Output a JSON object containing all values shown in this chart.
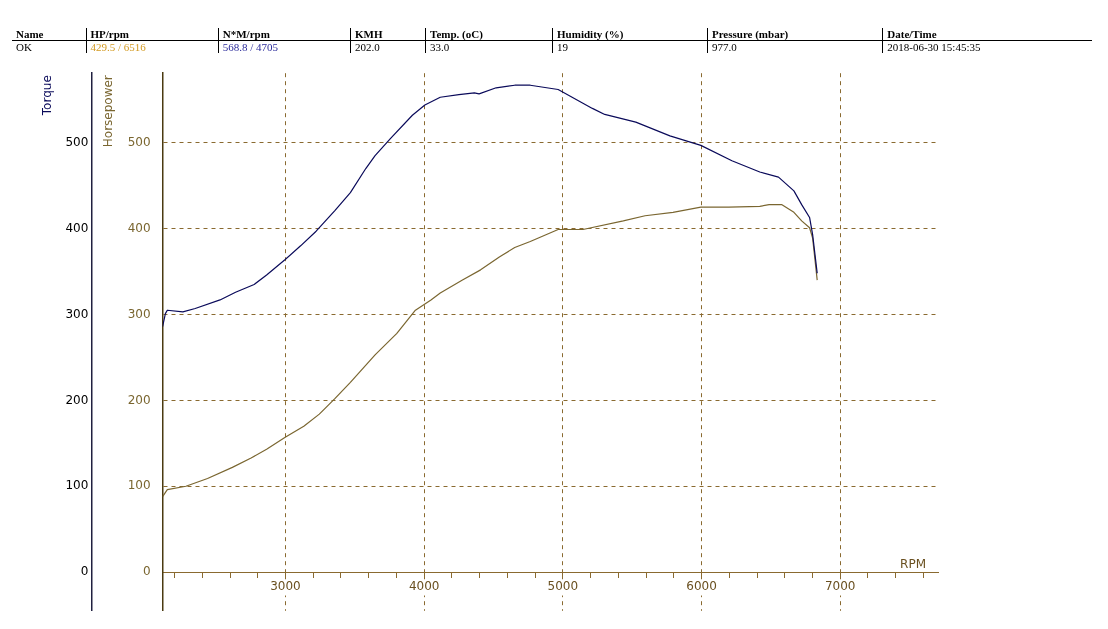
{
  "chart_data": {
    "type": "line",
    "xlabel": "RPM",
    "ylabel": "Torque",
    "y2label": "Horsepower",
    "annotations": [
      "Name",
      "HP/rpm",
      "N*M/rpm",
      "KMH",
      "Temp. (oC)",
      "Humidity (%)",
      "Pressure (mbar)",
      "Date/Time",
      "OK",
      "429.5 / 6516",
      "568.8 / 4705",
      "202.0",
      "33.0",
      "19",
      "977.0",
      "2018-06-30 15:45:35"
    ],
    "xlim": [
      2114,
      7705
    ],
    "xticks": [
      {
        "value": 2200,
        "label": null
      },
      {
        "value": 2400,
        "label": null
      },
      {
        "value": 2600,
        "label": null
      },
      {
        "value": 2800,
        "label": null
      },
      3000,
      {
        "value": 3200,
        "label": null
      },
      {
        "value": 3400,
        "label": null
      },
      {
        "value": 3600,
        "label": null
      },
      {
        "value": 3800,
        "label": null
      },
      4000,
      {
        "value": 4200,
        "label": null
      },
      {
        "value": 4400,
        "label": null
      },
      {
        "value": 4600,
        "label": null
      },
      {
        "value": 4800,
        "label": null
      },
      5000,
      {
        "value": 5200,
        "label": null
      },
      {
        "value": 5400,
        "label": null
      },
      {
        "value": 5600,
        "label": null
      },
      {
        "value": 5800,
        "label": null
      },
      6000,
      {
        "value": 6200,
        "label": null
      },
      {
        "value": 6400,
        "label": null
      },
      {
        "value": 6600,
        "label": null
      },
      {
        "value": 6800,
        "label": null
      },
      7000,
      {
        "value": 7200,
        "label": null
      },
      {
        "value": 7400,
        "label": null
      },
      {
        "value": 7600,
        "label": null
      }
    ],
    "ylim": [
      -45,
      581
    ],
    "yticks": [
      0,
      100,
      200,
      300,
      400,
      500
    ],
    "y2lim": [
      -45,
      581
    ],
    "y2ticks": [
      0,
      100,
      200,
      300,
      400,
      500
    ],
    "grid": true,
    "legend": false,
    "marker": "none",
    "line_style": "solid",
    "series": [
      {
        "color": "#0a0a5a",
        "x": [
          2114,
          2134,
          2148,
          2260,
          2349,
          2528,
          2640,
          2774,
          2864,
          2998,
          3109,
          3221,
          3356,
          3468,
          3579,
          3646,
          3758,
          3915,
          4005,
          4116,
          4250,
          4362,
          4396,
          4519,
          4653,
          4765,
          4966,
          5213,
          5302,
          5526,
          5772,
          5995,
          6219,
          6420,
          6555,
          6666,
          6722,
          6779,
          6801,
          6834
        ],
        "values": [
          286,
          301,
          305,
          303,
          307,
          317,
          326,
          335,
          346,
          364,
          380,
          397,
          421,
          442,
          470,
          485,
          505,
          532,
          544,
          553,
          556,
          558,
          557,
          564,
          567,
          567,
          562,
          540,
          533,
          524,
          508,
          497,
          479,
          466,
          460,
          444,
          428,
          413,
          393,
          348
        ]
      },
      {
        "color": "#7a6630",
        "axis": "y2",
        "x": [
          2114,
          2148,
          2282,
          2438,
          2617,
          2752,
          2864,
          2998,
          3132,
          3244,
          3356,
          3468,
          3646,
          3803,
          3937,
          4049,
          4116,
          4273,
          4407,
          4542,
          4653,
          4765,
          4966,
          5145,
          5436,
          5593,
          5794,
          5995,
          6197,
          6420,
          6487,
          6577,
          6666,
          6722,
          6779,
          6801,
          6834
        ],
        "values": [
          88,
          96,
          100,
          109,
          122,
          133,
          143,
          157,
          170,
          184,
          202,
          221,
          253,
          278,
          305,
          317,
          325,
          340,
          352,
          367,
          378,
          385,
          399,
          399,
          409,
          415,
          419,
          425,
          425,
          426,
          428,
          428,
          419,
          409,
          401,
          389,
          340
        ]
      }
    ]
  }
}
